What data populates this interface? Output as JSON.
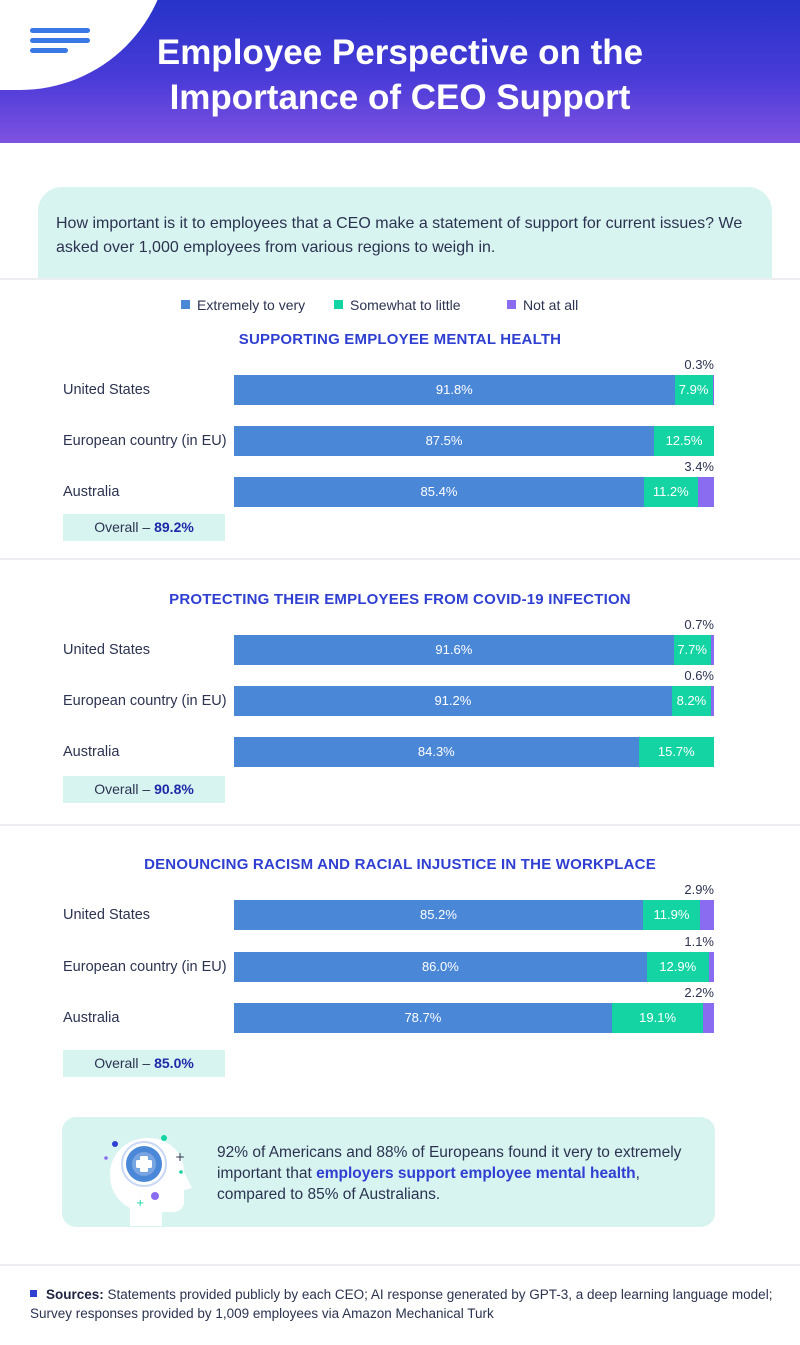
{
  "title": "Employee Perspective on the\nImportance of CEO Support",
  "intro": "How important is it to employees that a CEO make a statement of support for current issues? We asked over 1,000 employees from various regions to weigh in.",
  "colors": {
    "extreme": "#4a87d7",
    "somewhat": "#13d4a2",
    "notatall": "#8a6cf0",
    "accent": "#2f3fd1",
    "header_start": "#2633c9",
    "header_end": "#7f52e0",
    "panel": "#d8f4f1"
  },
  "legend": [
    "Extremely to very",
    "Somewhat to little",
    "Not at all"
  ],
  "chart_data": [
    {
      "type": "bar",
      "title": "SUPPORTING EMPLOYEE MENTAL HEALTH",
      "categories": [
        "United States",
        "European country (in EU)",
        "Australia"
      ],
      "series": [
        {
          "name": "Extremely to very",
          "values": [
            91.8,
            87.5,
            85.4
          ]
        },
        {
          "name": "Somewhat to little",
          "values": [
            7.9,
            12.5,
            11.2
          ]
        },
        {
          "name": "Not at all",
          "values": [
            0.3,
            0,
            3.4
          ]
        }
      ],
      "labels": [
        [
          "91.8%",
          "7.9%",
          "0.3%"
        ],
        [
          "87.5%",
          "12.5%",
          ""
        ],
        [
          "85.4%",
          "11.2%",
          "3.4%"
        ]
      ],
      "overall": {
        "label": "Overall – ",
        "value": "89.2%"
      }
    },
    {
      "type": "bar",
      "title": "PROTECTING THEIR EMPLOYEES FROM COVID-19 INFECTION",
      "categories": [
        "United States",
        "European country (in EU)",
        "Australia"
      ],
      "series": [
        {
          "name": "Extremely to very",
          "values": [
            91.6,
            91.2,
            84.3
          ]
        },
        {
          "name": "Somewhat to little",
          "values": [
            7.7,
            8.2,
            15.7
          ]
        },
        {
          "name": "Not at all",
          "values": [
            0.7,
            0.6,
            0
          ]
        }
      ],
      "labels": [
        [
          "91.6%",
          "7.7%",
          "0.7%"
        ],
        [
          "91.2%",
          "8.2%",
          "0.6%"
        ],
        [
          "84.3%",
          "15.7%",
          ""
        ]
      ],
      "overall": {
        "label": "Overall – ",
        "value": "90.8%"
      }
    },
    {
      "type": "bar",
      "title": "DENOUNCING RACISM AND RACIAL INJUSTICE IN THE WORKPLACE",
      "categories": [
        "United States",
        "European country (in EU)",
        "Australia"
      ],
      "series": [
        {
          "name": "Extremely to very",
          "values": [
            85.2,
            86.0,
            78.7
          ]
        },
        {
          "name": "Somewhat to little",
          "values": [
            11.9,
            12.9,
            19.1
          ]
        },
        {
          "name": "Not at all",
          "values": [
            2.9,
            1.1,
            2.2
          ]
        }
      ],
      "labels": [
        [
          "85.2%",
          "11.9%",
          "2.9%"
        ],
        [
          "86.0%",
          "12.9%",
          "1.1%"
        ],
        [
          "78.7%",
          "19.1%",
          "2.2%"
        ]
      ],
      "overall": {
        "label": "Overall – ",
        "value": "85.0%"
      }
    }
  ],
  "fact": {
    "pre": "92% of Americans and 88% of Europeans found it very to extremely important that ",
    "highlight": "employers support employee mental health",
    "post": ", compared to 85% of Australians.",
    "icon": "head-plus-icon"
  },
  "sources": {
    "label": "Sources:",
    "text": " Statements provided publicly by each CEO; AI response generated by GPT-3, a deep learning language model; Survey responses provided by 1,009 employees via Amazon Mechanical Turk"
  }
}
